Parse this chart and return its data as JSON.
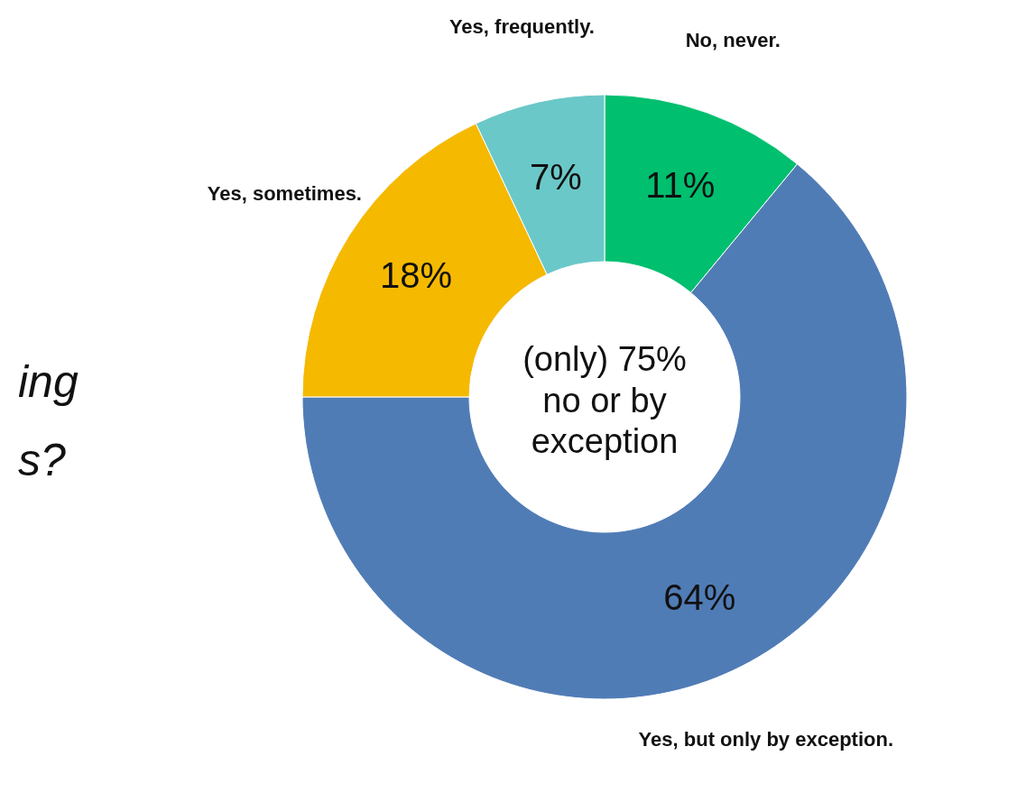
{
  "chart_data": {
    "type": "donut",
    "categories": [
      "No, never.",
      "Yes, but only by exception.",
      "Yes, sometimes.",
      "Yes, frequently."
    ],
    "values": [
      11,
      64,
      18,
      7
    ],
    "value_labels": [
      "11%",
      "64%",
      "18%",
      "7%"
    ],
    "colors": [
      "#00bf6f",
      "#507cb6",
      "#f5b900",
      "#6bc8c8"
    ],
    "annotations": [
      "(only) 75%\nno or by\nexception",
      "ing",
      "s?"
    ],
    "legend": false
  }
}
